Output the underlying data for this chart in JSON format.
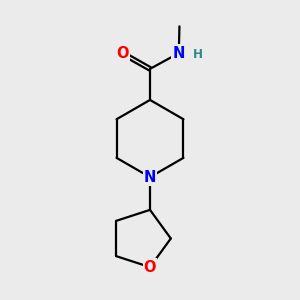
{
  "background_color": "#ebebeb",
  "bond_color": "#000000",
  "O_color": "#ff0000",
  "N_color": "#0000ff",
  "H_color": "#2e8b8b",
  "line_width": 1.6,
  "font_size": 10.5,
  "fig_w": 3.0,
  "fig_h": 3.0,
  "dpi": 100,
  "xlim": [
    0.1,
    0.9
  ],
  "ylim": [
    0.05,
    0.95
  ]
}
